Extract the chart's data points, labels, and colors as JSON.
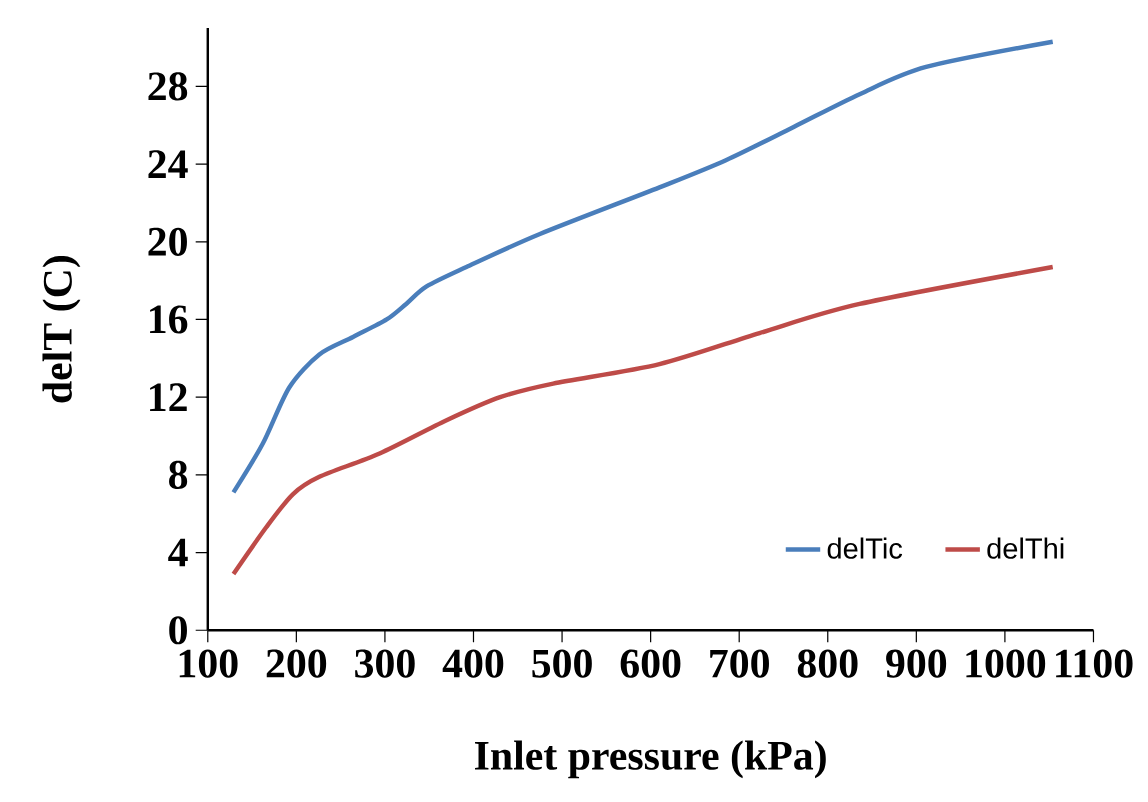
{
  "chart_data": {
    "type": "line",
    "xlabel": "Inlet pressure (kPa)",
    "ylabel": "delT (C)",
    "xlim": [
      100,
      1100
    ],
    "xticks": [
      100,
      200,
      300,
      400,
      500,
      600,
      700,
      800,
      900,
      1000,
      1100
    ],
    "ylim": [
      0,
      31
    ],
    "yticks": [
      0,
      4,
      8,
      12,
      16,
      20,
      24,
      28
    ],
    "legend": "bottom right",
    "grid": false,
    "marker": "none",
    "line_style": "solid",
    "series": [
      {
        "name": "delTic",
        "color": "#4a7ebb",
        "x": [
          129,
          162,
          192,
          226,
          264,
          302,
          324,
          347,
          392,
          475,
          610,
          685,
          761,
          836,
          911,
          1054
        ],
        "values": [
          7.1,
          9.6,
          12.5,
          14.2,
          15.1,
          16.0,
          16.8,
          17.7,
          18.7,
          20.4,
          22.8,
          24.2,
          25.9,
          27.6,
          29.0,
          30.3
        ]
      },
      {
        "name": "delThi",
        "color": "#be4b48",
        "x": [
          129,
          166,
          196,
          226,
          294,
          369,
          430,
          490,
          610,
          723,
          836,
          1054
        ],
        "values": [
          2.9,
          5.3,
          7.0,
          7.9,
          9.1,
          10.8,
          12.0,
          12.7,
          13.7,
          15.3,
          16.8,
          18.7
        ]
      }
    ]
  }
}
